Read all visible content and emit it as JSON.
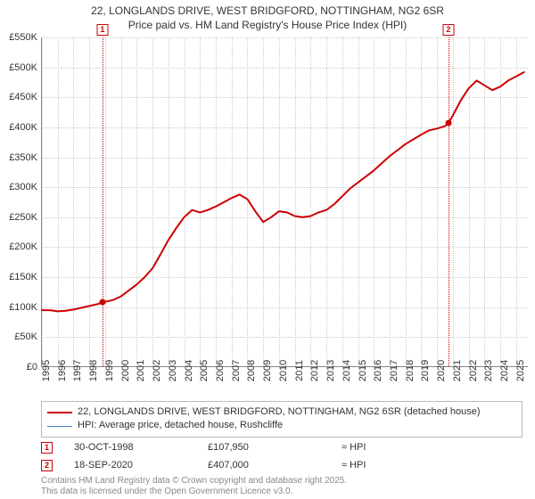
{
  "title_line1": "22, LONGLANDS DRIVE, WEST BRIDGFORD, NOTTINGHAM, NG2 6SR",
  "title_line2": "Price paid vs. HM Land Registry's House Price Index (HPI)",
  "chart": {
    "type": "line",
    "background_color": "#ffffff",
    "grid_color": "#cccccc",
    "axis_color": "#888888",
    "label_fontsize": 11,
    "y_axis": {
      "min": 0,
      "max": 550000,
      "tick_step": 50000,
      "labels": [
        "£0",
        "£50K",
        "£100K",
        "£150K",
        "£200K",
        "£250K",
        "£300K",
        "£350K",
        "£400K",
        "£450K",
        "£500K",
        "£550K"
      ]
    },
    "x_axis": {
      "min": 1995,
      "max": 2025.8,
      "tick_step": 1,
      "labels": [
        "1995",
        "1996",
        "1997",
        "1998",
        "1999",
        "2000",
        "2001",
        "2002",
        "2003",
        "2004",
        "2005",
        "2006",
        "2007",
        "2008",
        "2009",
        "2010",
        "2011",
        "2012",
        "2013",
        "2014",
        "2015",
        "2016",
        "2017",
        "2018",
        "2019",
        "2020",
        "2021",
        "2022",
        "2023",
        "2024",
        "2025"
      ]
    },
    "series": [
      {
        "name": "22, LONGLANDS DRIVE, WEST BRIDGFORD, NOTTINGHAM, NG2 6SR (detached house)",
        "color": "#cc0000",
        "line_width": 2,
        "data": [
          [
            1995.0,
            95000
          ],
          [
            1995.5,
            95000
          ],
          [
            1996.0,
            93000
          ],
          [
            1996.5,
            94000
          ],
          [
            1997.0,
            96000
          ],
          [
            1997.5,
            99000
          ],
          [
            1998.0,
            102000
          ],
          [
            1998.5,
            105000
          ],
          [
            1998.83,
            107950
          ],
          [
            1999.0,
            109000
          ],
          [
            1999.5,
            112000
          ],
          [
            2000.0,
            118000
          ],
          [
            2000.5,
            128000
          ],
          [
            2001.0,
            138000
          ],
          [
            2001.5,
            150000
          ],
          [
            2002.0,
            165000
          ],
          [
            2002.5,
            188000
          ],
          [
            2003.0,
            212000
          ],
          [
            2003.5,
            232000
          ],
          [
            2004.0,
            250000
          ],
          [
            2004.5,
            262000
          ],
          [
            2005.0,
            258000
          ],
          [
            2005.5,
            262000
          ],
          [
            2006.0,
            268000
          ],
          [
            2006.5,
            275000
          ],
          [
            2007.0,
            282000
          ],
          [
            2007.5,
            288000
          ],
          [
            2008.0,
            280000
          ],
          [
            2008.5,
            260000
          ],
          [
            2009.0,
            242000
          ],
          [
            2009.5,
            250000
          ],
          [
            2010.0,
            260000
          ],
          [
            2010.5,
            258000
          ],
          [
            2011.0,
            252000
          ],
          [
            2011.5,
            250000
          ],
          [
            2012.0,
            252000
          ],
          [
            2012.5,
            258000
          ],
          [
            2013.0,
            262000
          ],
          [
            2013.5,
            272000
          ],
          [
            2014.0,
            285000
          ],
          [
            2014.5,
            298000
          ],
          [
            2015.0,
            308000
          ],
          [
            2015.5,
            318000
          ],
          [
            2016.0,
            328000
          ],
          [
            2016.5,
            340000
          ],
          [
            2017.0,
            352000
          ],
          [
            2017.5,
            362000
          ],
          [
            2018.0,
            372000
          ],
          [
            2018.5,
            380000
          ],
          [
            2019.0,
            388000
          ],
          [
            2019.5,
            395000
          ],
          [
            2020.0,
            398000
          ],
          [
            2020.5,
            402000
          ],
          [
            2020.72,
            407000
          ],
          [
            2021.0,
            420000
          ],
          [
            2021.5,
            445000
          ],
          [
            2022.0,
            465000
          ],
          [
            2022.5,
            478000
          ],
          [
            2023.0,
            470000
          ],
          [
            2023.5,
            462000
          ],
          [
            2024.0,
            468000
          ],
          [
            2024.5,
            478000
          ],
          [
            2025.0,
            485000
          ],
          [
            2025.5,
            492000
          ]
        ]
      },
      {
        "name": "HPI: Average price, detached house, Rushcliffe",
        "color": "#4a7ec8",
        "line_width": 1,
        "data": []
      }
    ],
    "markers": [
      {
        "label": "1",
        "x": 1998.83,
        "y": 107950
      },
      {
        "label": "2",
        "x": 2020.72,
        "y": 407000
      }
    ]
  },
  "legend": {
    "items": [
      {
        "label": "22, LONGLANDS DRIVE, WEST BRIDGFORD, NOTTINGHAM, NG2 6SR (detached house)",
        "color": "#cc0000",
        "width": 2
      },
      {
        "label": "HPI: Average price, detached house, Rushcliffe",
        "color": "#4a7ec8",
        "width": 1
      }
    ]
  },
  "sales": [
    {
      "num": "1",
      "date": "30-OCT-1998",
      "price": "£107,950",
      "hpi": "≈ HPI"
    },
    {
      "num": "2",
      "date": "18-SEP-2020",
      "price": "£407,000",
      "hpi": "≈ HPI"
    }
  ],
  "footer_line1": "Contains HM Land Registry data © Crown copyright and database right 2025.",
  "footer_line2": "This data is licensed under the Open Government Licence v3.0."
}
